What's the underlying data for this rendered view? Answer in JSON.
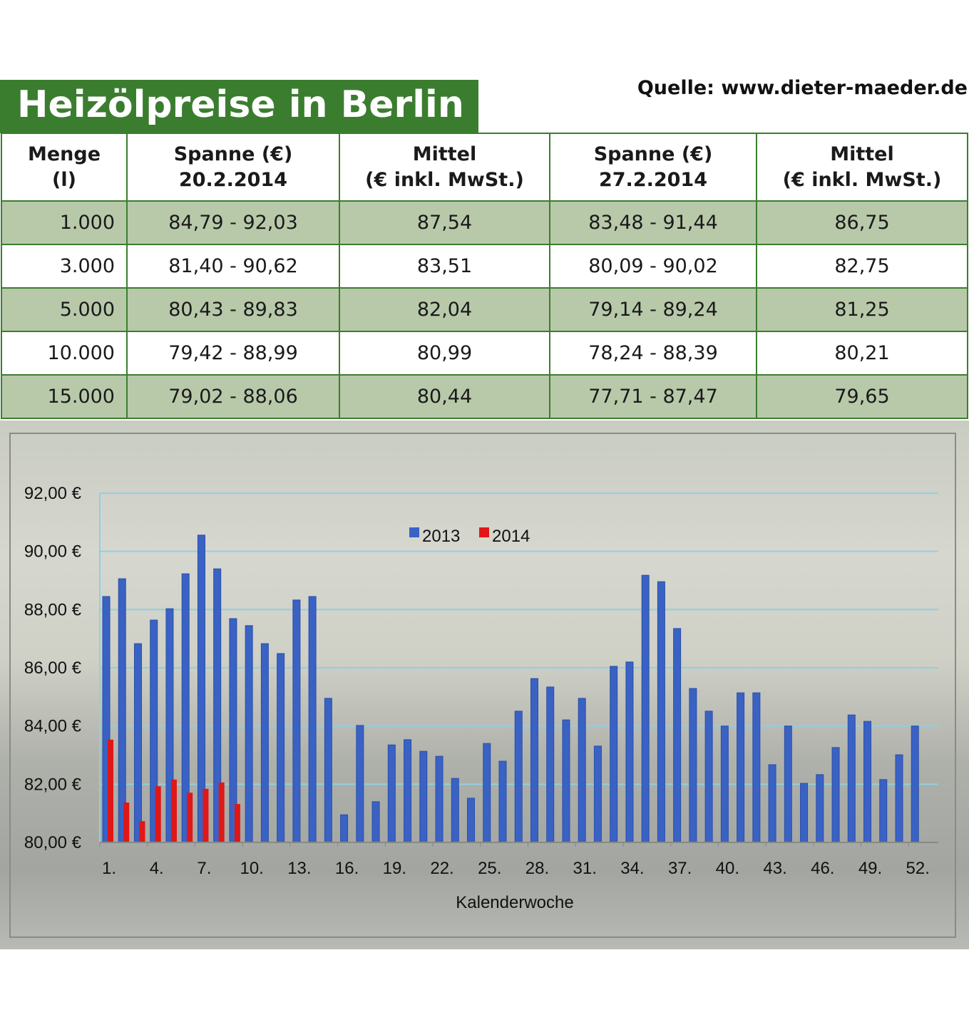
{
  "header": {
    "title": "Heizölpreise in Berlin",
    "source": "Quelle: www.dieter-maeder.de"
  },
  "table": {
    "columns": [
      {
        "line1": "Menge",
        "line2": "(l)"
      },
      {
        "line1": "Spanne (€)",
        "line2": "20.2.2014"
      },
      {
        "line1": "Mittel",
        "line2": "(€ inkl. MwSt.)"
      },
      {
        "line1": "Spanne (€)",
        "line2": "27.2.2014"
      },
      {
        "line1": "Mittel",
        "line2": "(€ inkl. MwSt.)"
      }
    ],
    "rows": [
      [
        "1.000",
        "84,79 - 92,03",
        "87,54",
        "83,48 - 91,44",
        "86,75"
      ],
      [
        "3.000",
        "81,40 - 90,62",
        "83,51",
        "80,09 - 90,02",
        "82,75"
      ],
      [
        "5.000",
        "80,43 - 89,83",
        "82,04",
        "79,14 - 89,24",
        "81,25"
      ],
      [
        "10.000",
        "79,42 - 88,99",
        "80,99",
        "78,24 - 88,39",
        "80,21"
      ],
      [
        "15.000",
        "79,02 - 88,06",
        "80,44",
        "77,71 - 87,47",
        "79,65"
      ]
    ]
  },
  "colors": {
    "brand_green": "#3b7d2f",
    "row_green": "#b8c9aa",
    "series_2013": "#3a62c4",
    "series_2014": "#e01717",
    "gridline": "#8fd0e0"
  },
  "chart_data": {
    "type": "bar",
    "xlabel": "Kalenderwoche",
    "ylabel": "",
    "ylim": [
      80,
      92
    ],
    "yticks": [
      "80,00 €",
      "82,00 €",
      "84,00 €",
      "86,00 €",
      "88,00 €",
      "90,00 €",
      "92,00 €"
    ],
    "ytick_values": [
      80,
      82,
      84,
      86,
      88,
      90,
      92
    ],
    "xticks": [
      "1.",
      "4.",
      "7.",
      "10.",
      "13.",
      "16.",
      "19.",
      "22.",
      "25.",
      "28.",
      "31.",
      "34.",
      "37.",
      "40.",
      "43.",
      "46.",
      "49.",
      "52."
    ],
    "xtick_weeks": [
      1,
      4,
      7,
      10,
      13,
      16,
      19,
      22,
      25,
      28,
      31,
      34,
      37,
      40,
      43,
      46,
      49,
      52
    ],
    "weeks": [
      1,
      2,
      3,
      4,
      5,
      6,
      7,
      8,
      9,
      10,
      11,
      12,
      13,
      14,
      15,
      16,
      17,
      18,
      19,
      20,
      21,
      22,
      23,
      24,
      25,
      26,
      27,
      28,
      29,
      30,
      31,
      32,
      33,
      34,
      35,
      36,
      37,
      38,
      39,
      40,
      41,
      42,
      43,
      44,
      45,
      46,
      47,
      48,
      49,
      50,
      51,
      52
    ],
    "grid": true,
    "legend_position": "top-center",
    "series": [
      {
        "name": "2013",
        "values": [
          88.45,
          89.06,
          86.83,
          87.64,
          88.03,
          89.23,
          90.56,
          89.4,
          87.69,
          87.45,
          86.83,
          86.49,
          88.33,
          88.45,
          84.95,
          80.95,
          84.02,
          81.4,
          83.35,
          83.53,
          83.13,
          82.96,
          82.2,
          81.52,
          83.4,
          82.79,
          84.51,
          85.63,
          85.34,
          84.21,
          84.95,
          83.31,
          86.05,
          86.2,
          89.18,
          88.96,
          87.35,
          85.29,
          84.51,
          84.0,
          85.14,
          85.14,
          82.67,
          84.0,
          82.03,
          82.33,
          83.26,
          84.38,
          84.16,
          82.16,
          83.01,
          84.0
        ]
      },
      {
        "name": "2014",
        "values": [
          83.53,
          81.37,
          80.73,
          81.93,
          82.16,
          81.71,
          81.84,
          82.06,
          81.32
        ]
      }
    ]
  }
}
